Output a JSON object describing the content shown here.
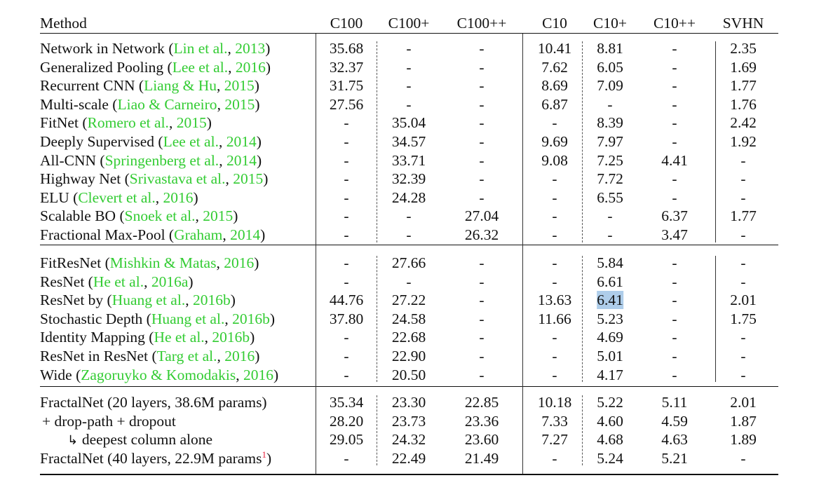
{
  "table": {
    "columns": [
      "Method",
      "C100",
      "C100+",
      "C100++",
      "C10",
      "C10+",
      "C10++",
      "SVHN"
    ],
    "groups": [
      {
        "rows": [
          {
            "method": "Network in Network",
            "cite_parts": [
              "Lin et al.",
              "2013"
            ],
            "values": [
              "35.68",
              "-",
              "-",
              "10.41",
              "8.81",
              "-",
              "2.35"
            ]
          },
          {
            "method": "Generalized Pooling",
            "cite_parts": [
              "Lee et al.",
              "2016"
            ],
            "values": [
              "32.37",
              "-",
              "-",
              "7.62",
              "6.05",
              "-",
              "1.69"
            ]
          },
          {
            "method": "Recurrent CNN",
            "cite_parts": [
              "Liang & Hu",
              "2015"
            ],
            "values": [
              "31.75",
              "-",
              "-",
              "8.69",
              "7.09",
              "-",
              "1.77"
            ]
          },
          {
            "method": "Multi-scale",
            "cite_parts": [
              "Liao & Carneiro",
              "2015"
            ],
            "values": [
              "27.56",
              "-",
              "-",
              "6.87",
              "-",
              "-",
              "1.76"
            ]
          },
          {
            "method": "FitNet",
            "cite_parts": [
              "Romero et al.",
              "2015"
            ],
            "values": [
              "-",
              "35.04",
              "-",
              "-",
              "8.39",
              "-",
              "2.42"
            ]
          },
          {
            "method": "Deeply Supervised",
            "cite_parts": [
              "Lee et al.",
              "2014"
            ],
            "values": [
              "-",
              "34.57",
              "-",
              "9.69",
              "7.97",
              "-",
              "1.92"
            ]
          },
          {
            "method": "All-CNN",
            "cite_parts": [
              "Springenberg et al.",
              "2014"
            ],
            "values": [
              "-",
              "33.71",
              "-",
              "9.08",
              "7.25",
              "4.41",
              "-"
            ]
          },
          {
            "method": "Highway Net",
            "cite_parts": [
              "Srivastava et al.",
              "2015"
            ],
            "values": [
              "-",
              "32.39",
              "-",
              "-",
              "7.72",
              "-",
              "-"
            ]
          },
          {
            "method": "ELU",
            "cite_parts": [
              "Clevert et al.",
              "2016"
            ],
            "values": [
              "-",
              "24.28",
              "-",
              "-",
              "6.55",
              "-",
              "-"
            ]
          },
          {
            "method": "Scalable BO",
            "cite_parts": [
              "Snoek et al.",
              "2015"
            ],
            "values": [
              "-",
              "-",
              "27.04",
              "-",
              "-",
              "6.37",
              "1.77"
            ]
          },
          {
            "method": "Fractional Max-Pool",
            "cite_parts": [
              "Graham",
              "2014"
            ],
            "values": [
              "-",
              "-",
              "26.32",
              "-",
              "-",
              "3.47",
              "-"
            ]
          }
        ]
      },
      {
        "rows": [
          {
            "method": "FitResNet",
            "cite_parts": [
              "Mishkin & Matas",
              "2016"
            ],
            "values": [
              "-",
              "27.66",
              "-",
              "-",
              "5.84",
              "-",
              "-"
            ]
          },
          {
            "method": "ResNet",
            "cite_parts": [
              "He et al.",
              "2016a"
            ],
            "values": [
              "-",
              "-",
              "-",
              "-",
              "6.61",
              "-",
              "-"
            ]
          },
          {
            "method": "ResNet by",
            "cite_parts": [
              "Huang et al.",
              "2016b"
            ],
            "values": [
              "44.76",
              "27.22",
              "-",
              "13.63",
              "6.41",
              "-",
              "2.01"
            ]
          },
          {
            "method": "Stochastic Depth",
            "cite_parts": [
              "Huang et al.",
              "2016b"
            ],
            "values": [
              "37.80",
              "24.58",
              "-",
              "11.66",
              "5.23",
              "-",
              "1.75"
            ]
          },
          {
            "method": "Identity Mapping",
            "cite_parts": [
              "He et al.",
              "2016b"
            ],
            "values": [
              "-",
              "22.68",
              "-",
              "-",
              "4.69",
              "-",
              "-"
            ]
          },
          {
            "method": "ResNet in ResNet",
            "cite_parts": [
              "Targ et al.",
              "2016"
            ],
            "values": [
              "-",
              "22.90",
              "-",
              "-",
              "5.01",
              "-",
              "-"
            ]
          },
          {
            "method": "Wide",
            "cite_parts": [
              "Zagoruyko & Komodakis",
              "2016"
            ],
            "values": [
              "-",
              "20.50",
              "-",
              "-",
              "4.17",
              "-",
              "-"
            ]
          }
        ]
      },
      {
        "rows": [
          {
            "method": "FractalNet (20 layers, 38.6M params)",
            "values": [
              "35.34",
              "23.30",
              "22.85",
              "10.18",
              "5.22",
              "5.11",
              "2.01"
            ]
          },
          {
            "method": "+ drop-path + dropout",
            "values": [
              "28.20",
              "23.73",
              "23.36",
              "7.33",
              "4.60",
              "4.59",
              "1.87"
            ]
          },
          {
            "method": "deepest column alone",
            "arrow_icon": "return-arrow-icon",
            "values": [
              "29.05",
              "24.32",
              "23.60",
              "7.27",
              "4.68",
              "4.63",
              "1.89"
            ]
          },
          {
            "method": "FractalNet (40 layers, 22.9M params",
            "sup": "1",
            "close": ")",
            "values": [
              "-",
              "22.49",
              "21.49",
              "-",
              "5.24",
              "5.21",
              "-"
            ]
          }
        ]
      }
    ]
  },
  "colors": {
    "citation": "#33cc33",
    "highlight": "#aecdea",
    "footnote": "#e8213c"
  }
}
